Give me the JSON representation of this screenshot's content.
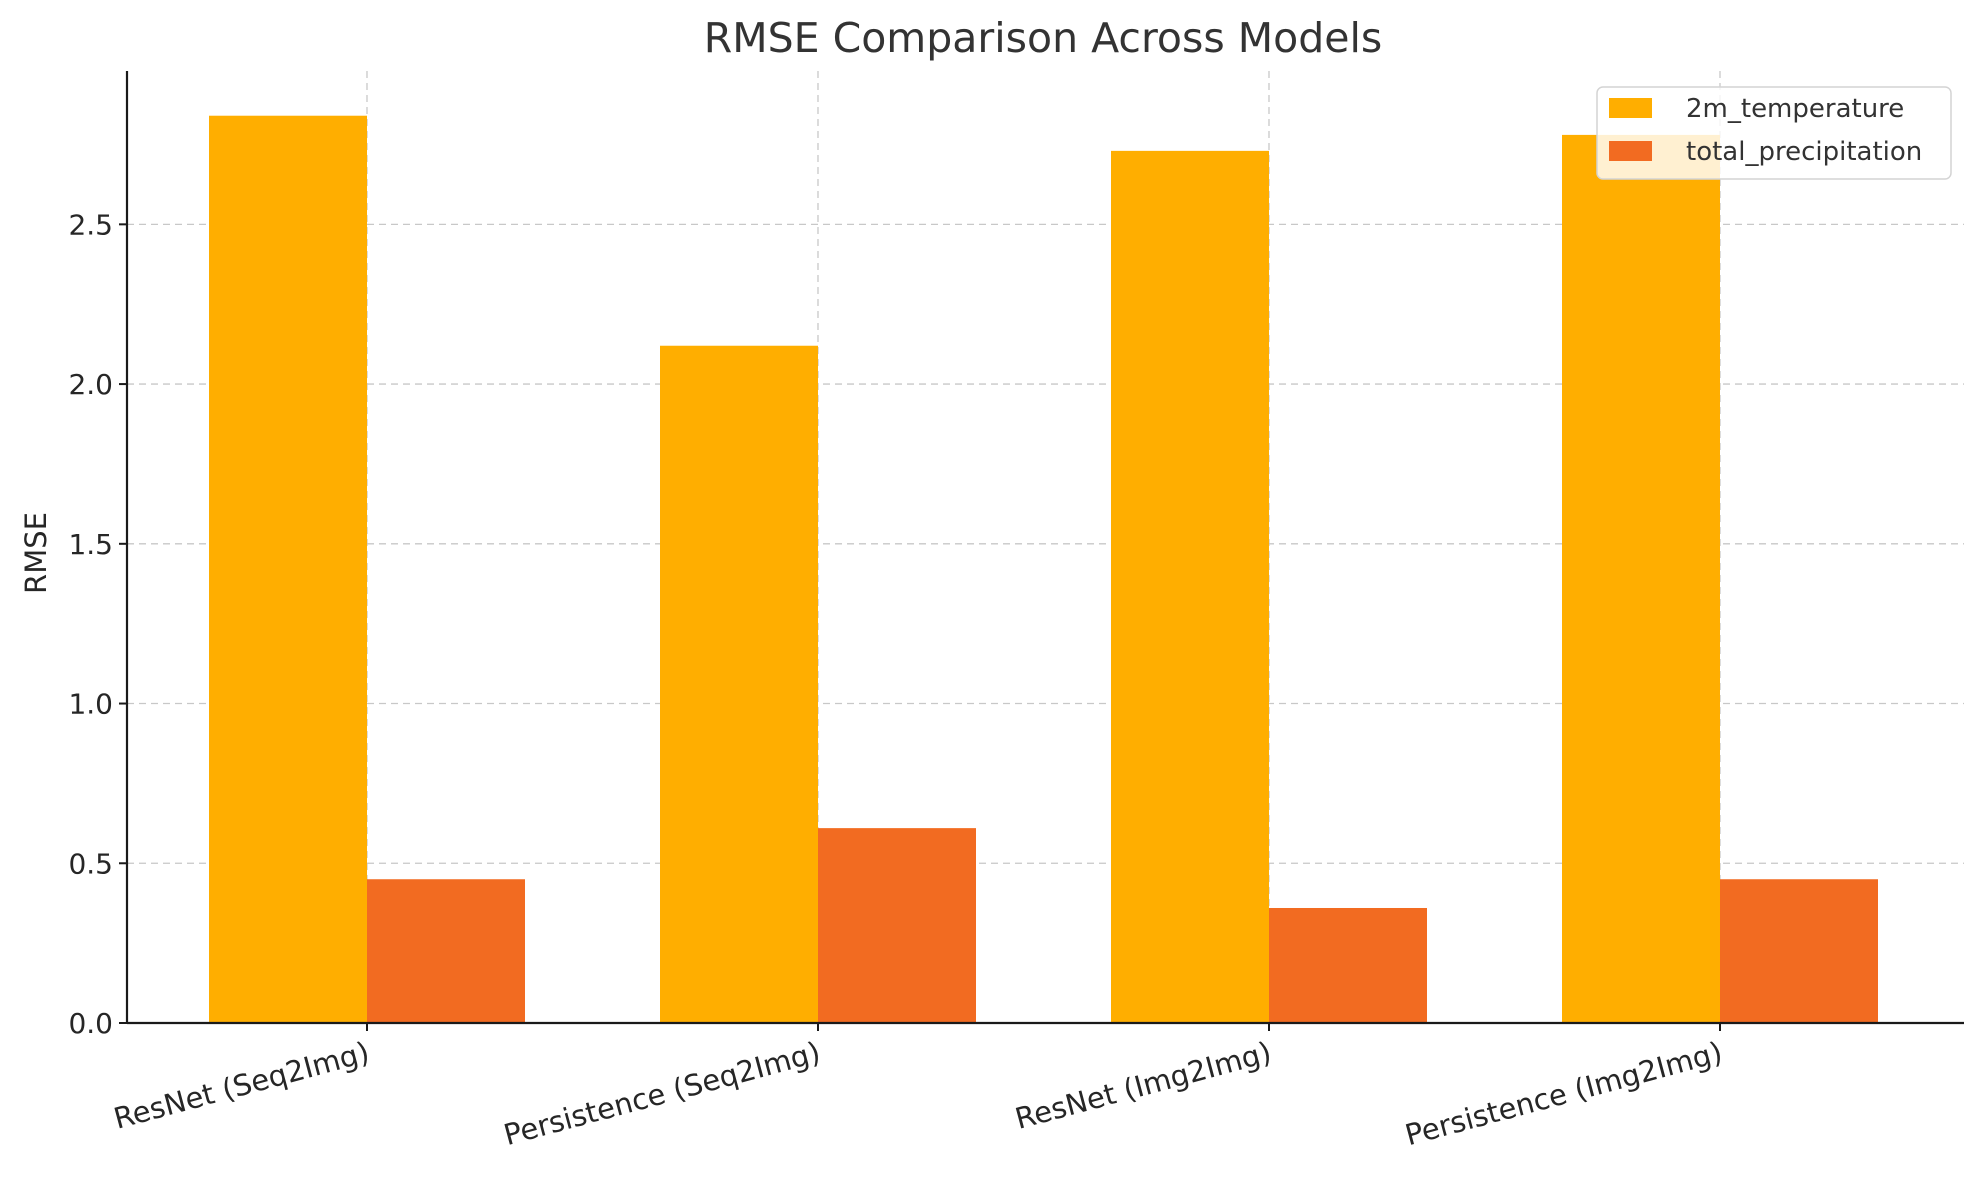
{
  "chart_data": {
    "type": "bar",
    "title": "RMSE Comparison Across Models",
    "xlabel": "",
    "ylabel": "RMSE",
    "categories": [
      "ResNet (Seq2Img)",
      "Persistence (Seq2Img)",
      "ResNet (Img2Img)",
      "Persistence (Img2Img)"
    ],
    "series": [
      {
        "name": "2m_temperature",
        "values": [
          2.84,
          2.12,
          2.73,
          2.78
        ],
        "color": "#FFAE00"
      },
      {
        "name": "total_precipitation",
        "values": [
          0.45,
          0.61,
          0.36,
          0.45
        ],
        "color": "#F26B21"
      }
    ],
    "ylim": [
      0,
      2.98
    ],
    "yticks": [
      "0.0",
      "0.5",
      "1.0",
      "1.5",
      "2.0",
      "2.5"
    ],
    "grid": true,
    "legend_position": "top-right"
  }
}
